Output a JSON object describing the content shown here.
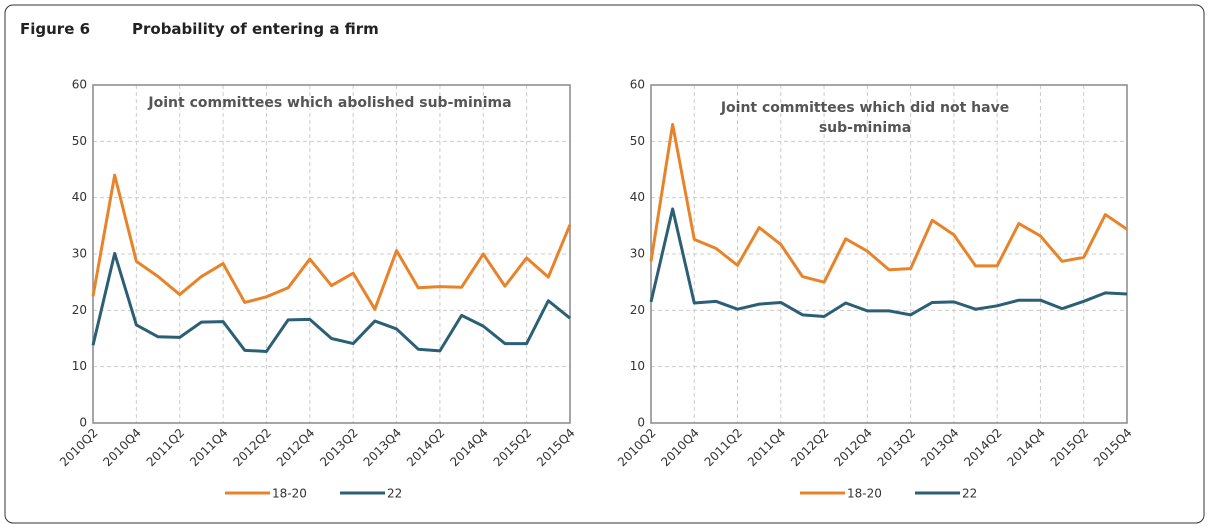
{
  "figure": {
    "label": "Figure 6",
    "title": "Probability of entering a firm"
  },
  "chart_data": [
    {
      "type": "line",
      "title": "Joint committees which abolished sub-minima",
      "categories": [
        "2010Q2",
        null,
        "2010Q4",
        null,
        "2011Q2",
        null,
        "2011Q4",
        null,
        "2012Q2",
        null,
        "2012Q4",
        null,
        "2013Q2",
        null,
        "2013Q4",
        null,
        "2014Q2",
        null,
        "2014Q4",
        null,
        "2015Q2",
        null,
        "2015Q4"
      ],
      "series": [
        {
          "name": "18-20",
          "color": "#e8832a",
          "values": [
            22.5,
            44,
            28.7,
            26,
            22.8,
            26,
            28.3,
            21.4,
            22.4,
            24,
            29.1,
            24.4,
            26.6,
            20.2,
            30.6,
            24,
            24.2,
            24.1,
            30,
            24.3,
            29.3,
            25.9,
            35.2
          ]
        },
        {
          "name": "22",
          "color": "#2b5f75",
          "values": [
            13.8,
            30.1,
            17.4,
            15.3,
            15.2,
            17.9,
            18,
            12.9,
            12.7,
            18.3,
            18.4,
            15,
            14.1,
            18.1,
            16.7,
            13.1,
            12.8,
            19.1,
            17.2,
            14.1,
            14.1,
            21.7,
            18.6
          ]
        }
      ],
      "ylim": [
        0,
        60
      ],
      "yticks": [
        0,
        10,
        20,
        30,
        40,
        50,
        60
      ],
      "grid": true
    },
    {
      "type": "line",
      "title": "Joint committees which did not have sub-minima",
      "categories": [
        "2010Q2",
        null,
        "2010Q4",
        null,
        "2011Q2",
        null,
        "2011Q4",
        null,
        "2012Q2",
        null,
        "2012Q4",
        null,
        "2013Q2",
        null,
        "2013Q4",
        null,
        "2014Q2",
        null,
        "2014Q4",
        null,
        "2015Q2",
        null,
        "2015Q4"
      ],
      "series": [
        {
          "name": "18-20",
          "color": "#e8832a",
          "values": [
            28.7,
            53,
            32.6,
            31,
            28,
            34.7,
            31.7,
            26,
            25,
            32.7,
            30.5,
            27.2,
            27.4,
            36,
            33.4,
            27.9,
            27.9,
            35.4,
            33.2,
            28.7,
            29.4,
            37,
            34.4
          ]
        },
        {
          "name": "22",
          "color": "#2b5f75",
          "values": [
            21.5,
            38,
            21.3,
            21.6,
            20.2,
            21.1,
            21.4,
            19.2,
            18.9,
            21.3,
            19.9,
            19.9,
            19.2,
            21.4,
            21.5,
            20.2,
            20.8,
            21.8,
            21.8,
            20.3,
            21.6,
            23.1,
            22.9
          ]
        }
      ],
      "ylim": [
        0,
        60
      ],
      "yticks": [
        0,
        10,
        20,
        30,
        40,
        50,
        60
      ],
      "grid": true
    }
  ]
}
